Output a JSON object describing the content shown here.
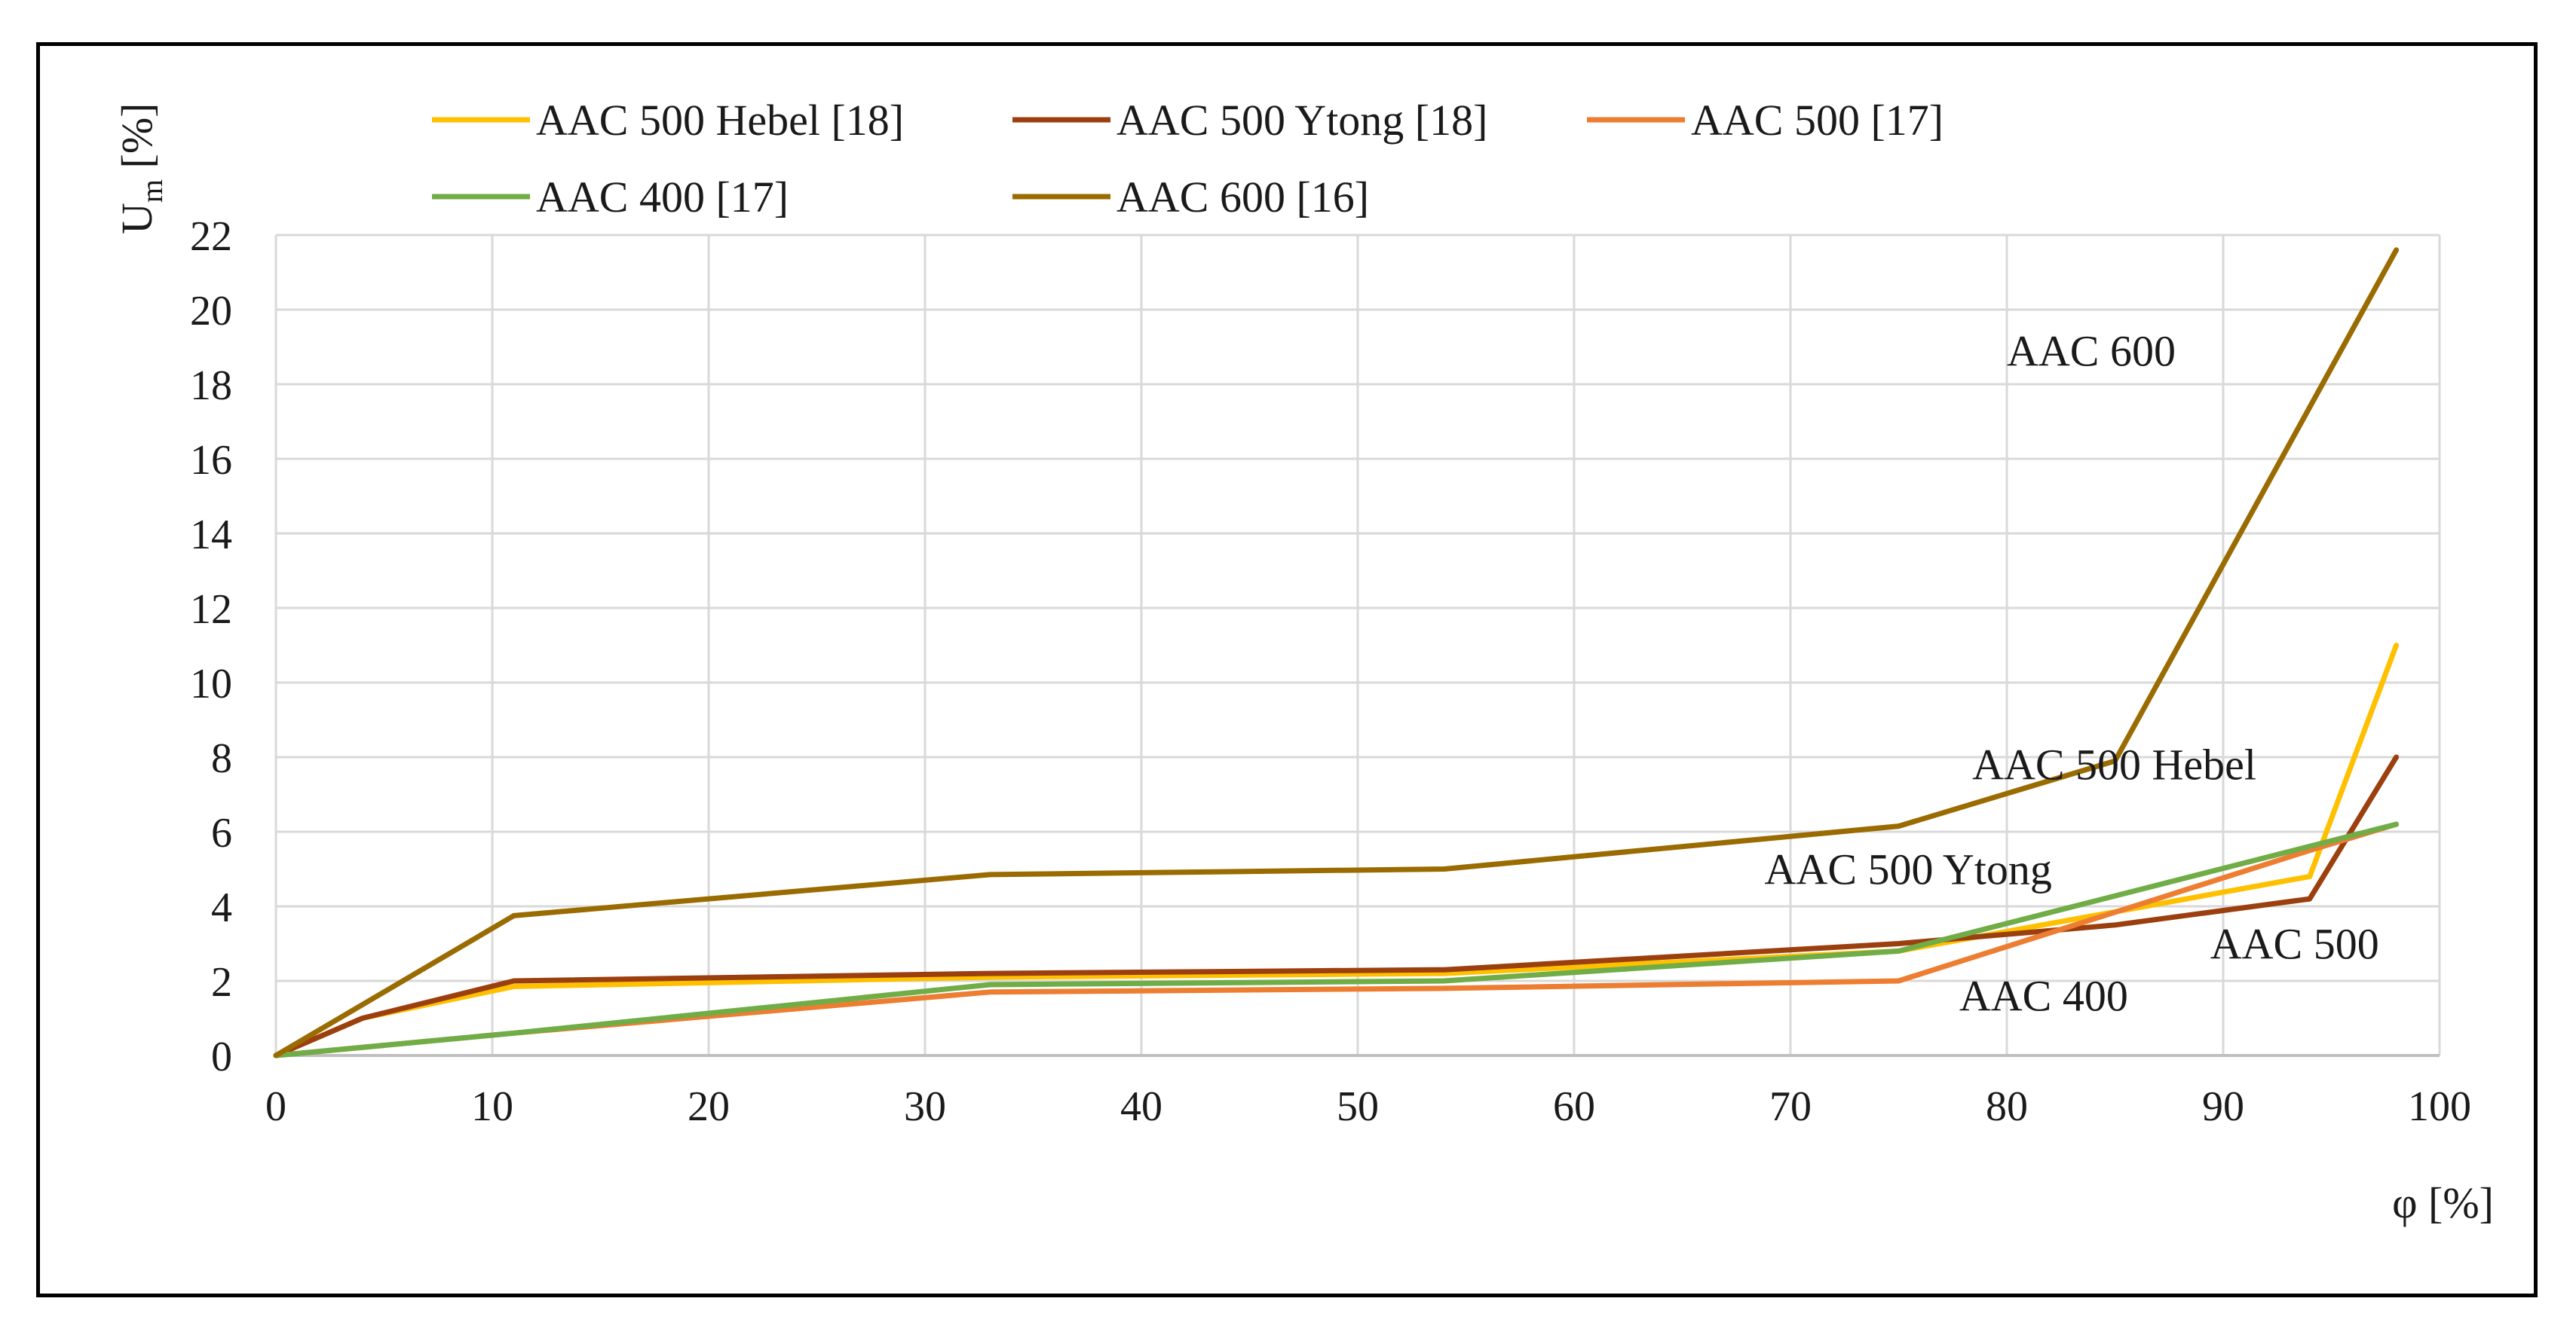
{
  "chart_data": {
    "type": "line",
    "title": "",
    "xlabel": "φ [%]",
    "ylabel_main": "U",
    "ylabel_sub": "m",
    "ylabel_suffix": " [%]",
    "xlim": [
      0,
      100
    ],
    "ylim": [
      0,
      22
    ],
    "xticks": [
      0,
      10,
      20,
      30,
      40,
      50,
      60,
      70,
      80,
      90,
      100
    ],
    "yticks": [
      0,
      2,
      4,
      6,
      8,
      10,
      12,
      14,
      16,
      18,
      20,
      22
    ],
    "grid": true,
    "legend_position": "top",
    "series": [
      {
        "name": "AAC 500 Hebel [18]",
        "color": "#FFC000",
        "points": [
          [
            0,
            0
          ],
          [
            4,
            1
          ],
          [
            11,
            1.85
          ],
          [
            33,
            2.1
          ],
          [
            54,
            2.2
          ],
          [
            75,
            2.8
          ],
          [
            94,
            4.8
          ],
          [
            98,
            11
          ]
        ]
      },
      {
        "name": "AAC 500 Ytong [18]",
        "color": "#9C3F0F",
        "points": [
          [
            0,
            0
          ],
          [
            4,
            1
          ],
          [
            11,
            2
          ],
          [
            33,
            2.2
          ],
          [
            54,
            2.3
          ],
          [
            75,
            3.0
          ],
          [
            85,
            3.5
          ],
          [
            94,
            4.2
          ],
          [
            98,
            8
          ]
        ]
      },
      {
        "name": "AAC 500 [17]",
        "color": "#ED7D31",
        "points": [
          [
            0,
            0
          ],
          [
            11,
            0.6
          ],
          [
            33,
            1.7
          ],
          [
            54,
            1.8
          ],
          [
            75,
            2.0
          ],
          [
            94,
            5.5
          ],
          [
            98,
            6.2
          ]
        ]
      },
      {
        "name": "AAC 400 [17]",
        "color": "#70AD47",
        "points": [
          [
            0,
            0
          ],
          [
            11,
            0.6
          ],
          [
            33,
            1.9
          ],
          [
            54,
            2.0
          ],
          [
            75,
            2.8
          ],
          [
            98,
            6.2
          ]
        ]
      },
      {
        "name": "AAC 600 [16]",
        "color": "#9A6B00",
        "points": [
          [
            0,
            0
          ],
          [
            11,
            3.75
          ],
          [
            33,
            4.85
          ],
          [
            54,
            5.0
          ],
          [
            75,
            6.15
          ],
          [
            85,
            7.9
          ],
          [
            98,
            21.6
          ]
        ]
      }
    ],
    "annotations": [
      {
        "text": "AAC 600",
        "x": 80,
        "y": 18.5
      },
      {
        "text": "AAC 500 Hebel",
        "x": 78.4,
        "y": 7.4
      },
      {
        "text": "AAC 500 Ytong",
        "x": 68.8,
        "y": 4.6
      },
      {
        "text": "AAC 500",
        "x": 89.4,
        "y": 2.6
      },
      {
        "text": "AAC 400",
        "x": 77.8,
        "y": 1.2
      }
    ]
  }
}
